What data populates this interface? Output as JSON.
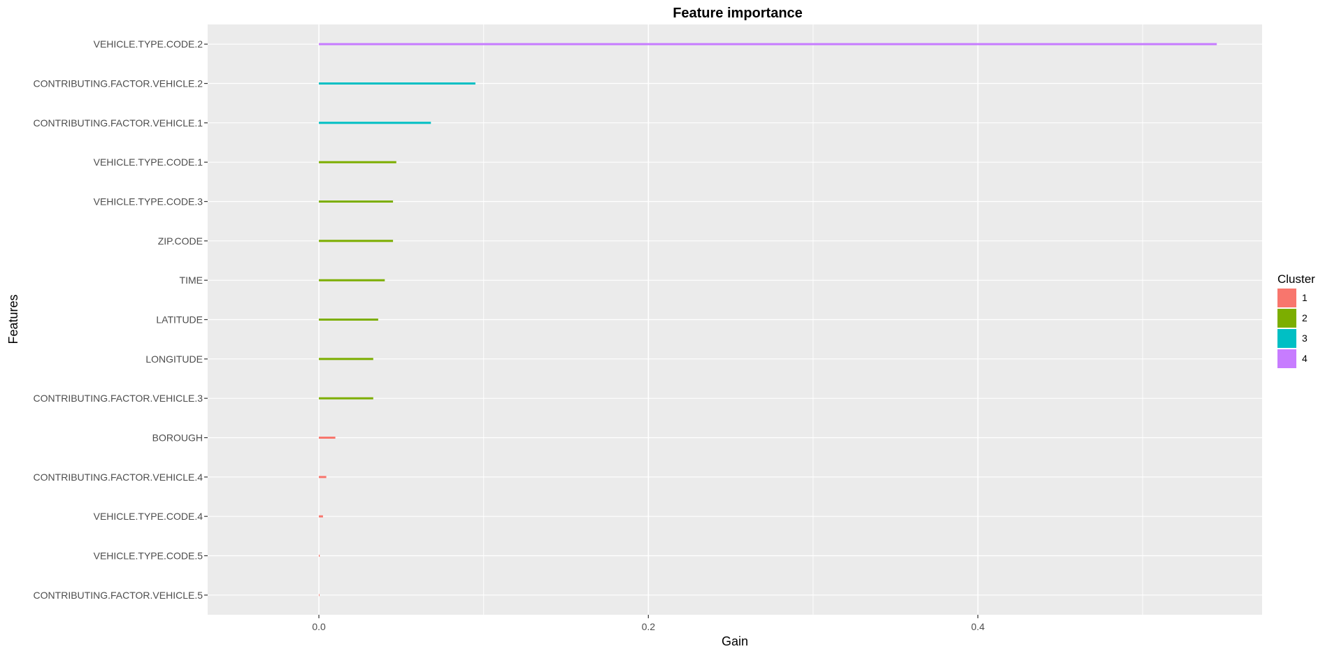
{
  "chart_data": {
    "type": "bar",
    "orientation": "horizontal",
    "title": "Feature importance",
    "xlabel": "Gain",
    "ylabel": "Features",
    "xlim": [
      -0.0675,
      0.5725
    ],
    "x_ticks": [
      0.0,
      0.2,
      0.4
    ],
    "x_tick_labels": [
      "0.0",
      "0.2",
      "0.4"
    ],
    "grid": true,
    "legend": {
      "title": "Cluster",
      "position": "right",
      "entries": [
        {
          "label": "1",
          "color": "#F8766D"
        },
        {
          "label": "2",
          "color": "#7CAE00"
        },
        {
          "label": "3",
          "color": "#00BFC4"
        },
        {
          "label": "4",
          "color": "#C77CFF"
        }
      ]
    },
    "bars": [
      {
        "feature": "VEHICLE.TYPE.CODE.2",
        "gain": 0.545,
        "cluster": "4"
      },
      {
        "feature": "CONTRIBUTING.FACTOR.VEHICLE.2",
        "gain": 0.095,
        "cluster": "3"
      },
      {
        "feature": "CONTRIBUTING.FACTOR.VEHICLE.1",
        "gain": 0.068,
        "cluster": "3"
      },
      {
        "feature": "VEHICLE.TYPE.CODE.1",
        "gain": 0.047,
        "cluster": "2"
      },
      {
        "feature": "VEHICLE.TYPE.CODE.3",
        "gain": 0.045,
        "cluster": "2"
      },
      {
        "feature": "ZIP.CODE",
        "gain": 0.045,
        "cluster": "2"
      },
      {
        "feature": "TIME",
        "gain": 0.04,
        "cluster": "2"
      },
      {
        "feature": "LATITUDE",
        "gain": 0.036,
        "cluster": "2"
      },
      {
        "feature": "LONGITUDE",
        "gain": 0.033,
        "cluster": "2"
      },
      {
        "feature": "CONTRIBUTING.FACTOR.VEHICLE.3",
        "gain": 0.033,
        "cluster": "2"
      },
      {
        "feature": "BOROUGH",
        "gain": 0.01,
        "cluster": "1"
      },
      {
        "feature": "CONTRIBUTING.FACTOR.VEHICLE.4",
        "gain": 0.0045,
        "cluster": "1"
      },
      {
        "feature": "VEHICLE.TYPE.CODE.4",
        "gain": 0.0025,
        "cluster": "1"
      },
      {
        "feature": "VEHICLE.TYPE.CODE.5",
        "gain": 0.0005,
        "cluster": "1"
      },
      {
        "feature": "CONTRIBUTING.FACTOR.VEHICLE.5",
        "gain": 0.0003,
        "cluster": "1"
      }
    ]
  }
}
